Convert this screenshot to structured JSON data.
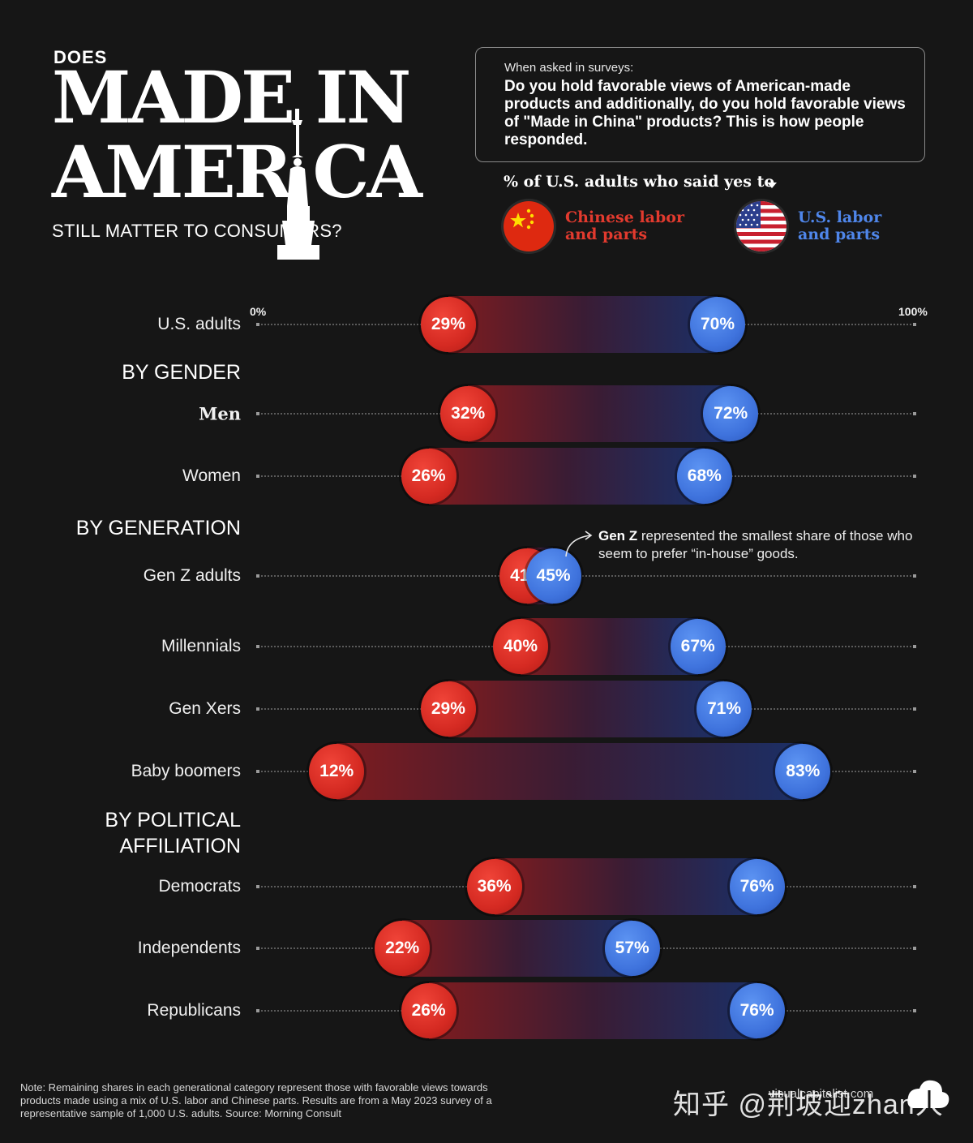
{
  "header": {
    "pre_title": "DOES",
    "title_line1": "MADE IN",
    "title_line2": "AMER CA",
    "subtitle": "STILL MATTER TO CONSUMERS?"
  },
  "survey_box": {
    "intro": "When asked in surveys:",
    "question": "Do you hold favorable views of American-made products and additionally, do you hold favorable views of \"Made in China\" products? This is how people responded."
  },
  "legend": {
    "title": "% of U.S. adults who said yes to",
    "chinese_label_line1": "Chinese labor",
    "chinese_label_line2": "and parts",
    "us_label_line1": "U.S. labor",
    "us_label_line2": "and parts"
  },
  "chart_data": {
    "type": "dumbbell",
    "xlim": [
      0,
      100
    ],
    "axis_min_label": "0%",
    "axis_max_label": "100%",
    "series": [
      {
        "key": "chinese",
        "name": "Chinese labor and parts",
        "color": "#d52a22"
      },
      {
        "key": "us",
        "name": "U.S. labor and parts",
        "color": "#3f73dd"
      }
    ],
    "sections": [
      {
        "heading": "",
        "rows": [
          {
            "label": "U.S. adults",
            "chinese": 29,
            "us": 70,
            "chinese_text": "29%",
            "us_text": "70%"
          }
        ]
      },
      {
        "heading": "BY GENDER",
        "rows": [
          {
            "label": "Men",
            "chinese": 32,
            "us": 72,
            "chinese_text": "32%",
            "us_text": "72%"
          },
          {
            "label": "Women",
            "chinese": 26,
            "us": 68,
            "chinese_text": "26%",
            "us_text": "68%"
          }
        ]
      },
      {
        "heading": "BY GENERATION",
        "rows": [
          {
            "label": "Gen Z adults",
            "chinese": 41,
            "us": 45,
            "chinese_text": "41%",
            "us_text": "45%"
          },
          {
            "label": "Millennials",
            "chinese": 40,
            "us": 67,
            "chinese_text": "40%",
            "us_text": "67%"
          },
          {
            "label": "Gen Xers",
            "chinese": 29,
            "us": 71,
            "chinese_text": "29%",
            "us_text": "71%"
          },
          {
            "label": "Baby boomers",
            "chinese": 12,
            "us": 83,
            "chinese_text": "12%",
            "us_text": "83%"
          }
        ]
      },
      {
        "heading_line1": "BY POLITICAL",
        "heading_line2": "AFFILIATION",
        "rows": [
          {
            "label": "Democrats",
            "chinese": 36,
            "us": 76,
            "chinese_text": "36%",
            "us_text": "76%"
          },
          {
            "label": "Independents",
            "chinese": 22,
            "us": 57,
            "chinese_text": "22%",
            "us_text": "57%"
          },
          {
            "label": "Republicans",
            "chinese": 26,
            "us": 76,
            "chinese_text": "26%",
            "us_text": "76%"
          }
        ]
      }
    ],
    "annotation_bold": "Gen Z",
    "annotation_text": " represented the smallest share of those who seem to prefer “in-house” goods."
  },
  "footer": {
    "note": "Note: Remaining shares in each generational category represent those with favorable views towards products made using a mix of U.S. labor and Chinese parts. Results are from a May 2023 survey of a representative sample of 1,000 U.S. adults. Source: Morning Consult",
    "site": "visualcapitalist.com",
    "watermark": "知乎 @荆坡迎zhan人"
  }
}
